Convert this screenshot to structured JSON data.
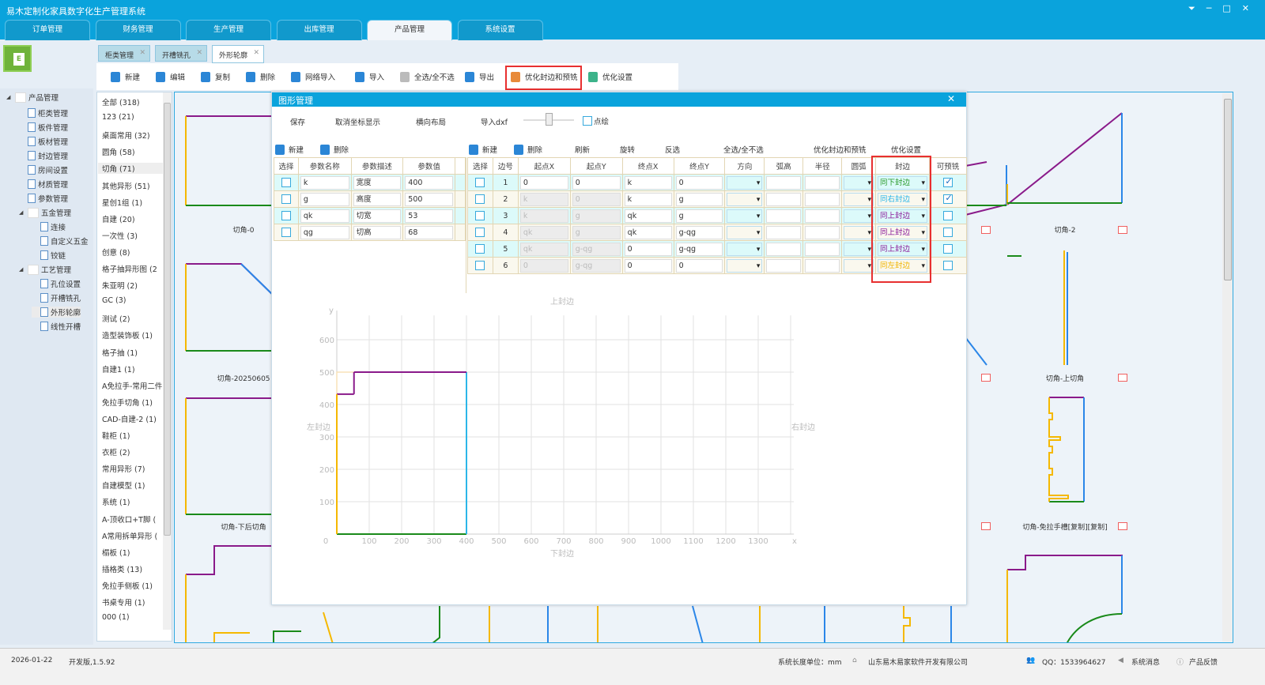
{
  "app": {
    "title": "易木定制化家具数字化生产管理系统"
  },
  "main_tabs": [
    {
      "label": "订单管理"
    },
    {
      "label": "财务管理"
    },
    {
      "label": "生产管理"
    },
    {
      "label": "出库管理"
    },
    {
      "label": "产品管理",
      "active": true
    },
    {
      "label": "系统设置"
    }
  ],
  "tree": [
    {
      "label": "产品管理",
      "level": 0,
      "type": "folder",
      "expanded": true
    },
    {
      "label": "柜类管理",
      "level": 1,
      "type": "doc"
    },
    {
      "label": "板件管理",
      "level": 1,
      "type": "doc"
    },
    {
      "label": "板材管理",
      "level": 1,
      "type": "doc"
    },
    {
      "label": "封边管理",
      "level": 1,
      "type": "doc"
    },
    {
      "label": "房间设置",
      "level": 1,
      "type": "doc"
    },
    {
      "label": "材质管理",
      "level": 1,
      "type": "doc"
    },
    {
      "label": "参数管理",
      "level": 1,
      "type": "doc"
    },
    {
      "label": "五金管理",
      "level": 1,
      "type": "folder",
      "expanded": true
    },
    {
      "label": "连接",
      "level": 2,
      "type": "doc"
    },
    {
      "label": "自定义五金",
      "level": 2,
      "type": "doc"
    },
    {
      "label": "铰链",
      "level": 2,
      "type": "doc"
    },
    {
      "label": "工艺管理",
      "level": 1,
      "type": "folder",
      "expanded": true
    },
    {
      "label": "孔位设置",
      "level": 2,
      "type": "doc"
    },
    {
      "label": "开槽铣孔",
      "level": 2,
      "type": "doc"
    },
    {
      "label": "外形轮廓",
      "level": 2,
      "type": "doc",
      "selected": true
    },
    {
      "label": "线性开槽",
      "level": 2,
      "type": "doc"
    }
  ],
  "doc_tabs": [
    {
      "label": "柜类管理"
    },
    {
      "label": "开槽铣孔"
    },
    {
      "label": "外形轮廓",
      "active": true
    }
  ],
  "toolbar": [
    {
      "label": "新建",
      "icon": "new-file-icon",
      "color": "#2b86d6"
    },
    {
      "label": "编辑",
      "icon": "edit-icon",
      "color": "#2b86d6"
    },
    {
      "label": "复制",
      "icon": "copy-icon",
      "color": "#2b86d6"
    },
    {
      "label": "删除",
      "icon": "trash-icon",
      "color": "#2b86d6"
    },
    {
      "label": "网络导入",
      "icon": "network-import-icon",
      "color": "#2b86d6"
    },
    {
      "label": "导入",
      "icon": "import-icon",
      "color": "#2b86d6"
    },
    {
      "label": "全选/全不选",
      "icon": "check-all-icon",
      "color": "#bbbbbb"
    },
    {
      "label": "导出",
      "icon": "export-icon",
      "color": "#2b86d6"
    },
    {
      "label": "优化封边和预铣",
      "icon": "tools-icon",
      "color": "#e88a3a",
      "highlighted": true
    },
    {
      "label": "优化设置",
      "icon": "gear-icon",
      "color": "#3cb38a"
    }
  ],
  "categories": [
    "全部  (318)",
    "123  (21)",
    "桌面常用  (32)",
    "圆角  (58)",
    "切角  (71)",
    "其他异形  (51)",
    "星创1组  (1)",
    "自建  (20)",
    "一次性  (3)",
    "创意  (8)",
    "格子抽异形图  (2",
    "朱亚明  (2)",
    "GC  (3)",
    "测试  (2)",
    "造型装饰板  (1)",
    "格子抽  (1)",
    "自建1  (1)",
    "A免拉手-常用二件",
    "免拉手切角  (1)",
    "CAD-自建-2  (1)",
    "鞋柜  (1)",
    "衣柜  (2)",
    "常用异形  (7)",
    "自建模型  (1)",
    "系统  (1)",
    "A-顶收口+T脚  (",
    "A常用拆单异形  (",
    "榻板  (1)",
    "插格类  (13)",
    "免拉手侧板  (1)",
    "书桌专用  (1)",
    "000  (1)"
  ],
  "selected_category": "切角  (71)",
  "thumbnails": [
    {
      "label": "切角-0"
    },
    {
      "label": "切角-20250605"
    },
    {
      "label": "切角-下后切角"
    },
    {
      "label": "切角-2"
    },
    {
      "label": "切角-上切角"
    },
    {
      "label": "切角-免拉手槽[复制][复制]"
    }
  ],
  "dialog": {
    "title": "图形管理",
    "top_actions": {
      "save": "保存",
      "toggle_coords": "取消坐标显示",
      "horizontal_layout": "横向布局",
      "import_dxf": "导入dxf",
      "point_draw": "点绘",
      "point_draw_checked": false,
      "slider_value": 0.5
    },
    "param_toolbar": {
      "new": "新建",
      "delete": "删除"
    },
    "edge_toolbar": {
      "new": "新建",
      "delete": "删除",
      "refresh": "刷新",
      "rotate": "旋转",
      "invert": "反选",
      "select_all": "全选/全不选",
      "optimize": "优化封边和预铣",
      "optimize_settings": "优化设置"
    },
    "param_columns": [
      "选择",
      "参数名称",
      "参数描述",
      "参数值"
    ],
    "params": [
      {
        "name": "k",
        "desc": "宽度",
        "value": "400"
      },
      {
        "name": "g",
        "desc": "高度",
        "value": "500"
      },
      {
        "name": "qk",
        "desc": "切宽",
        "value": "53"
      },
      {
        "name": "qg",
        "desc": "切高",
        "value": "68"
      }
    ],
    "edge_columns": [
      "选择",
      "边号",
      "起点X",
      "起点Y",
      "终点X",
      "终点Y",
      "方向",
      "弧高",
      "半径",
      "圆弧",
      "封边",
      "可预铣"
    ],
    "edges": [
      {
        "no": "1",
        "sx": "0",
        "sy": "0",
        "ex": "k",
        "ey": "0",
        "band": "同下封边",
        "band_color": "#2a9a2a",
        "premill": true
      },
      {
        "no": "2",
        "sx": "k",
        "sy": "0",
        "ex": "k",
        "ey": "g",
        "band": "同右封边",
        "band_color": "#2bb6e8",
        "premill": true
      },
      {
        "no": "3",
        "sx": "k",
        "sy": "g",
        "ex": "qk",
        "ey": "g",
        "band": "同上封边",
        "band_color": "#8a1a9a",
        "premill": false
      },
      {
        "no": "4",
        "sx": "qk",
        "sy": "g",
        "ex": "qk",
        "ey": "g-qg",
        "band": "同上封边",
        "band_color": "#8a1a9a",
        "premill": false
      },
      {
        "no": "5",
        "sx": "qk",
        "sy": "g-qg",
        "ex": "0",
        "ey": "g-qg",
        "band": "同上封边",
        "band_color": "#8a1a9a",
        "premill": false
      },
      {
        "no": "6",
        "sx": "0",
        "sy": "g-qg",
        "ex": "0",
        "ey": "0",
        "band": "同左封边",
        "band_color": "#f0b400",
        "premill": false
      }
    ]
  },
  "chart_data": {
    "type": "line",
    "x_ticks": [
      "0",
      "100",
      "200",
      "300",
      "400",
      "500",
      "600",
      "700",
      "800",
      "900",
      "1000",
      "1100",
      "1200",
      "1300"
    ],
    "y_ticks": [
      "100",
      "200",
      "300",
      "400",
      "500",
      "600"
    ],
    "xlabel": "x",
    "ylabel": "y",
    "xlim": [
      0,
      1400
    ],
    "ylim": [
      0,
      690
    ],
    "grid": true,
    "edge_labels": {
      "top": "上封边",
      "bottom": "下封边",
      "left": "左封边",
      "right": "右封边"
    },
    "segments": [
      {
        "from": [
          0,
          0
        ],
        "to": [
          400,
          0
        ],
        "color": "#1a8a1a"
      },
      {
        "from": [
          400,
          0
        ],
        "to": [
          400,
          500
        ],
        "color": "#2bb6e8"
      },
      {
        "from": [
          400,
          500
        ],
        "to": [
          53,
          500
        ],
        "color": "#8a1a8a"
      },
      {
        "from": [
          53,
          500
        ],
        "to": [
          53,
          432
        ],
        "color": "#8a1a8a"
      },
      {
        "from": [
          53,
          432
        ],
        "to": [
          0,
          432
        ],
        "color": "#8a1a8a"
      },
      {
        "from": [
          0,
          432
        ],
        "to": [
          0,
          0
        ],
        "color": "#f5b800"
      }
    ]
  },
  "status": {
    "date": "2026-01-22",
    "version": "开发版,1.5.92",
    "unit": "系统长度单位：mm",
    "company": "山东易木易家软件开发有限公司",
    "qq": "QQ：1533964627",
    "messages": "系统消息",
    "feedback": "产品反馈"
  }
}
